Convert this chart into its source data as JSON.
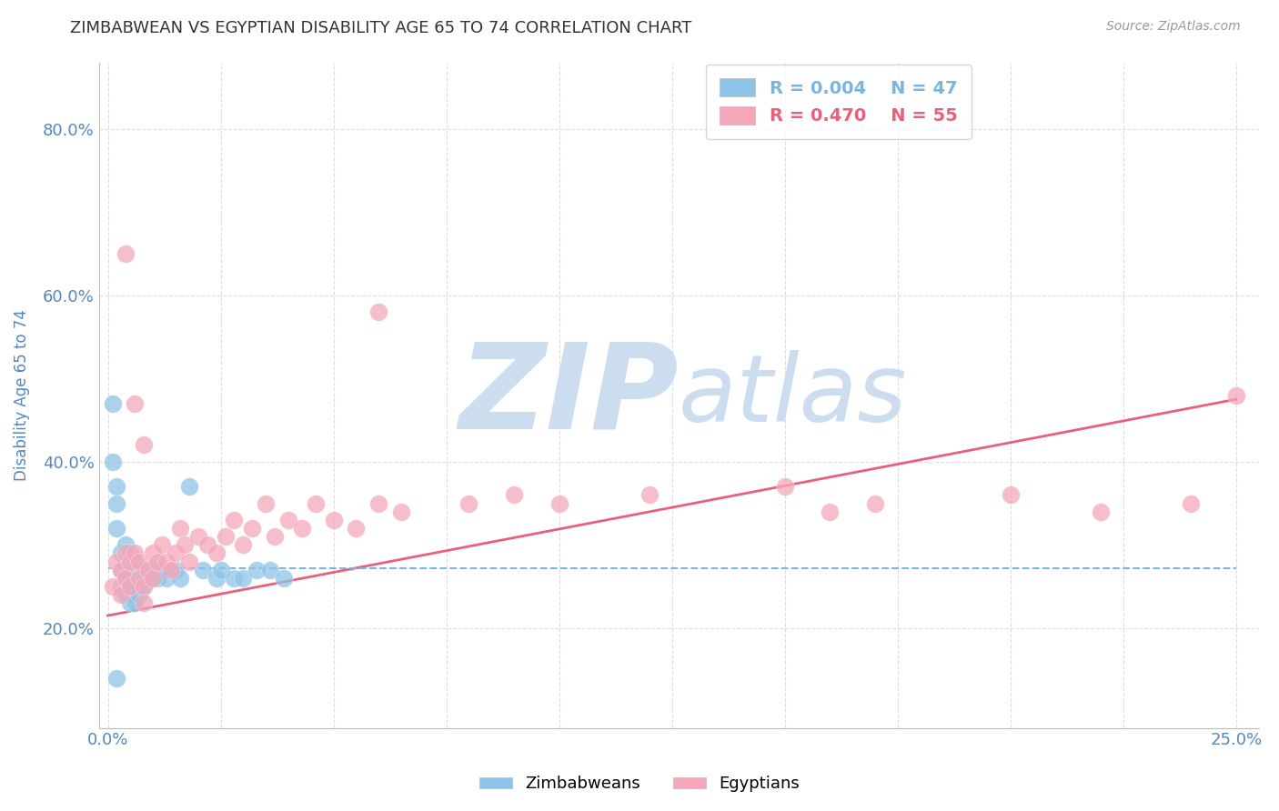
{
  "title": "ZIMBABWEAN VS EGYPTIAN DISABILITY AGE 65 TO 74 CORRELATION CHART",
  "source_text": "Source: ZipAtlas.com",
  "xlabel": "",
  "ylabel": "Disability Age 65 to 74",
  "xlim": [
    -0.002,
    0.255
  ],
  "ylim": [
    0.08,
    0.88
  ],
  "xticks": [
    0.0,
    0.025,
    0.05,
    0.075,
    0.1,
    0.125,
    0.15,
    0.175,
    0.2,
    0.225,
    0.25
  ],
  "ytick_positions": [
    0.2,
    0.4,
    0.6,
    0.8
  ],
  "ytick_labels": [
    "20.0%",
    "40.0%",
    "60.0%",
    "80.0%"
  ],
  "legend_r1": "R = 0.004",
  "legend_n1": "N = 47",
  "legend_r2": "R = 0.470",
  "legend_n2": "N = 55",
  "color_blue": "#8ec4e8",
  "color_pink": "#f4a7b9",
  "color_blue_line": "#7ab5de",
  "color_pink_line": "#e8607a",
  "color_title": "#333333",
  "color_axis_label": "#5588bb",
  "color_tick_label": "#5588bb",
  "watermark_ZIP": "ZIP",
  "watermark_atlas": "atlas",
  "watermark_color": "#ccddf0",
  "background_color": "#ffffff",
  "grid_color": "#dddddd",
  "blue_x": [
    0.001,
    0.001,
    0.002,
    0.002,
    0.002,
    0.003,
    0.003,
    0.003,
    0.004,
    0.004,
    0.004,
    0.004,
    0.005,
    0.005,
    0.005,
    0.005,
    0.006,
    0.006,
    0.006,
    0.006,
    0.007,
    0.007,
    0.007,
    0.007,
    0.008,
    0.008,
    0.008,
    0.009,
    0.009,
    0.01,
    0.01,
    0.011,
    0.011,
    0.012,
    0.013,
    0.015,
    0.016,
    0.018,
    0.021,
    0.024,
    0.025,
    0.028,
    0.03,
    0.033,
    0.036,
    0.039,
    0.002
  ],
  "blue_y": [
    0.47,
    0.4,
    0.37,
    0.35,
    0.32,
    0.29,
    0.27,
    0.25,
    0.3,
    0.28,
    0.26,
    0.24,
    0.29,
    0.27,
    0.25,
    0.23,
    0.28,
    0.26,
    0.25,
    0.23,
    0.27,
    0.26,
    0.25,
    0.24,
    0.27,
    0.26,
    0.25,
    0.27,
    0.26,
    0.27,
    0.26,
    0.27,
    0.26,
    0.27,
    0.26,
    0.27,
    0.26,
    0.37,
    0.27,
    0.26,
    0.27,
    0.26,
    0.26,
    0.27,
    0.27,
    0.26,
    0.14
  ],
  "pink_x": [
    0.001,
    0.002,
    0.003,
    0.003,
    0.004,
    0.004,
    0.005,
    0.005,
    0.006,
    0.007,
    0.007,
    0.008,
    0.008,
    0.009,
    0.01,
    0.01,
    0.011,
    0.012,
    0.013,
    0.014,
    0.015,
    0.016,
    0.017,
    0.018,
    0.02,
    0.022,
    0.024,
    0.026,
    0.028,
    0.03,
    0.032,
    0.035,
    0.037,
    0.04,
    0.043,
    0.046,
    0.05,
    0.055,
    0.06,
    0.065,
    0.08,
    0.09,
    0.1,
    0.12,
    0.15,
    0.16,
    0.17,
    0.2,
    0.22,
    0.24,
    0.06,
    0.004,
    0.006,
    0.008,
    0.25
  ],
  "pink_y": [
    0.25,
    0.28,
    0.27,
    0.24,
    0.29,
    0.26,
    0.28,
    0.25,
    0.29,
    0.28,
    0.26,
    0.25,
    0.23,
    0.27,
    0.29,
    0.26,
    0.28,
    0.3,
    0.28,
    0.27,
    0.29,
    0.32,
    0.3,
    0.28,
    0.31,
    0.3,
    0.29,
    0.31,
    0.33,
    0.3,
    0.32,
    0.35,
    0.31,
    0.33,
    0.32,
    0.35,
    0.33,
    0.32,
    0.35,
    0.34,
    0.35,
    0.36,
    0.35,
    0.36,
    0.37,
    0.34,
    0.35,
    0.36,
    0.34,
    0.35,
    0.58,
    0.65,
    0.47,
    0.42,
    0.48
  ],
  "blue_trend_x": [
    0.0,
    0.25
  ],
  "blue_trend_y": [
    0.272,
    0.272
  ],
  "pink_trend_x": [
    0.0,
    0.25
  ],
  "pink_trend_y": [
    0.215,
    0.475
  ]
}
